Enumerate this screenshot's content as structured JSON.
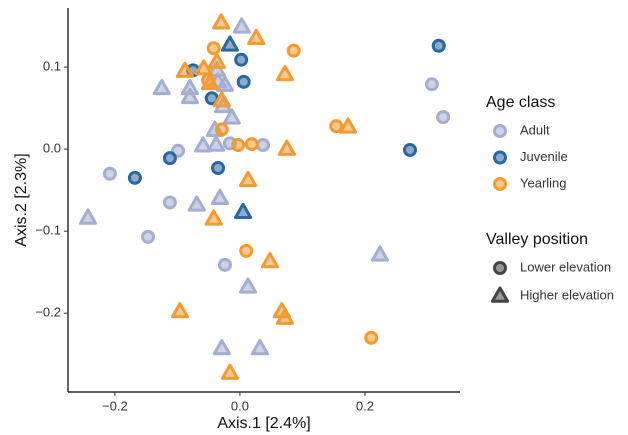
{
  "chart_data": {
    "type": "scatter",
    "x_label": "Axis.1  [2.4%]",
    "y_label": "Axis.2  [2.3%]",
    "xlim": [
      -0.275,
      0.352
    ],
    "ylim": [
      -0.296,
      0.172
    ],
    "xticks": [
      {
        "value": -0.2,
        "label": "−0.2"
      },
      {
        "value": 0,
        "label": "0.0"
      },
      0.2
    ],
    "yticks": [
      {
        "value": -0.2,
        "label": "−0.2"
      },
      {
        "value": -0.1,
        "label": "−0.1"
      },
      {
        "value": 0,
        "label": "0.0"
      },
      0.1
    ],
    "legend_title": "Age class",
    "shape_legend": {
      "title": "Valley position",
      "entries": [
        {
          "name": "Lower elevation",
          "shape": "circle"
        },
        {
          "name": "Higher elevation",
          "shape": "triangle"
        }
      ]
    },
    "series": [
      {
        "name": "Adult",
        "color": "#a4aed0",
        "x": [
          -0.208,
          -0.099,
          -0.112,
          -0.147,
          -0.016,
          0.037,
          -0.024,
          0.307,
          0.325,
          -0.125,
          -0.08,
          -0.08,
          0.003,
          -0.037,
          -0.035,
          -0.027,
          -0.013,
          -0.04,
          -0.059,
          -0.038,
          -0.243,
          -0.069,
          -0.032,
          0.013,
          -0.029,
          0.032,
          0.224,
          -0.024
        ],
        "y": [
          -0.03,
          -0.002,
          -0.065,
          -0.107,
          0.007,
          0.005,
          -0.141,
          0.079,
          0.039,
          0.074,
          0.074,
          0.063,
          0.149,
          0.096,
          0.082,
          0.052,
          0.038,
          0.023,
          0.004,
          0.005,
          -0.084,
          -0.068,
          -0.06,
          -0.168,
          -0.243,
          -0.243,
          -0.129,
          0.078
        ],
        "valley": [
          0,
          0,
          0,
          0,
          0,
          0,
          0,
          0,
          0,
          1,
          1,
          1,
          1,
          1,
          1,
          1,
          1,
          1,
          1,
          1,
          1,
          1,
          1,
          1,
          1,
          1,
          1,
          1
        ]
      },
      {
        "name": "Juvenile",
        "color": "#2b689f",
        "x": [
          0.318,
          0.272,
          -0.168,
          -0.112,
          -0.075,
          -0.045,
          0.002,
          0.006,
          -0.035,
          -0.016,
          0.005
        ],
        "y": [
          0.126,
          -0.001,
          -0.035,
          -0.011,
          0.096,
          0.062,
          0.109,
          0.082,
          -0.023,
          0.127,
          -0.077
        ],
        "valley": [
          0,
          0,
          0,
          0,
          0,
          0,
          0,
          0,
          0,
          1,
          1
        ]
      },
      {
        "name": "Yearling",
        "color": "#f29b33",
        "x": [
          -0.042,
          0.086,
          -0.003,
          0.019,
          -0.029,
          0.154,
          0.01,
          0.21,
          -0.051,
          -0.03,
          0.026,
          -0.088,
          -0.058,
          -0.037,
          0.072,
          -0.048,
          -0.029,
          0.173,
          0.075,
          0.013,
          -0.042,
          0.048,
          -0.096,
          0.067,
          0.072,
          -0.016
        ],
        "y": [
          0.123,
          0.12,
          0.005,
          0.006,
          0.024,
          0.028,
          -0.124,
          -0.23,
          0.084,
          0.154,
          0.135,
          0.095,
          0.098,
          0.106,
          0.091,
          0.08,
          0.059,
          0.027,
          0.0,
          -0.038,
          -0.085,
          -0.137,
          -0.198,
          -0.198,
          -0.206,
          -0.273
        ],
        "valley": [
          0,
          0,
          0,
          0,
          0,
          0,
          0,
          0,
          0,
          1,
          1,
          1,
          1,
          1,
          1,
          1,
          1,
          1,
          1,
          1,
          1,
          1,
          1,
          1,
          1,
          1
        ]
      }
    ]
  }
}
